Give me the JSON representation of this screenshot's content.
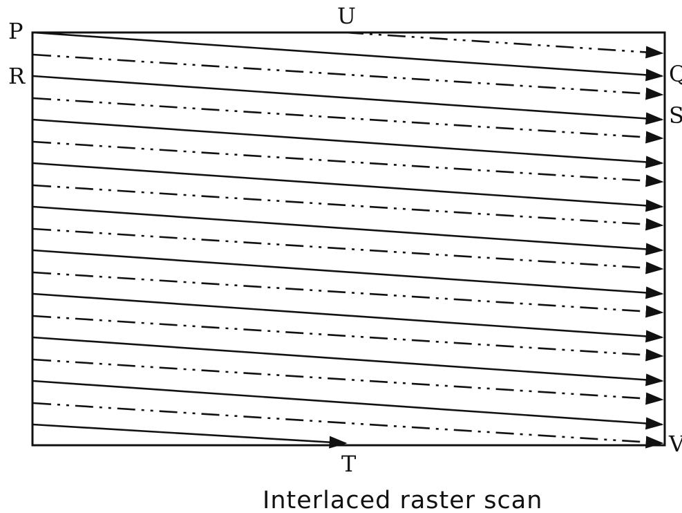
{
  "labels": {
    "p": "P",
    "q": "Q",
    "r": "R",
    "s": "S",
    "t": "T",
    "u": "U",
    "v": "V"
  },
  "caption": "Interlaced raster scan",
  "field_odd_line_count": 10,
  "field_even_line_count": 10,
  "colors": {
    "stroke": "#111111",
    "background": "#ffffff"
  }
}
